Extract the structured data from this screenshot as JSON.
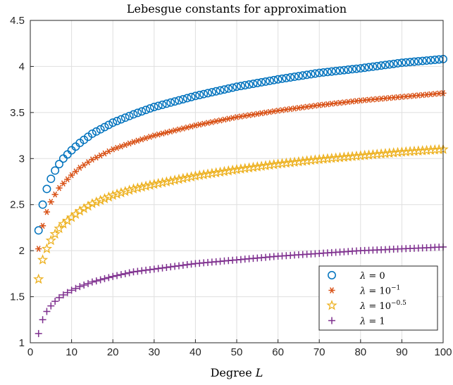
{
  "chart_data": {
    "type": "scatter",
    "title": "Lebesgue constants for approximation",
    "xlabel": "Degree L",
    "ylabel": "",
    "xlim": [
      0,
      100
    ],
    "ylim": [
      1,
      4.5
    ],
    "xticks": [
      0,
      10,
      20,
      30,
      40,
      50,
      60,
      70,
      80,
      90,
      100
    ],
    "yticks": [
      1,
      1.5,
      2,
      2.5,
      3,
      3.5,
      4,
      4.5
    ],
    "xtick_labels": [
      "0",
      "10",
      "20",
      "30",
      "40",
      "50",
      "60",
      "70",
      "80",
      "90",
      "100"
    ],
    "ytick_labels": [
      "1",
      "1.5",
      "2",
      "2.5",
      "3",
      "3.5",
      "4",
      "4.5"
    ],
    "grid": true,
    "legend_position": "bottom-right",
    "x": {
      "start": 2,
      "end": 100,
      "step": 1
    },
    "series": [
      {
        "name": "λ = 0",
        "marker": "circle",
        "color": "#0072BD",
        "anchors": [
          [
            2,
            2.22
          ],
          [
            3,
            2.5
          ],
          [
            4,
            2.67
          ],
          [
            5,
            2.78
          ],
          [
            6,
            2.87
          ],
          [
            7,
            2.94
          ],
          [
            8,
            3.0
          ],
          [
            10,
            3.09
          ],
          [
            12,
            3.17
          ],
          [
            15,
            3.27
          ],
          [
            20,
            3.39
          ],
          [
            25,
            3.48
          ],
          [
            30,
            3.56
          ],
          [
            40,
            3.68
          ],
          [
            50,
            3.78
          ],
          [
            60,
            3.86
          ],
          [
            70,
            3.93
          ],
          [
            80,
            3.98
          ],
          [
            90,
            4.04
          ],
          [
            100,
            4.08
          ]
        ]
      },
      {
        "name": "λ = 10^-1",
        "marker": "asterisk",
        "color": "#D95319",
        "anchors": [
          [
            2,
            2.02
          ],
          [
            3,
            2.27
          ],
          [
            4,
            2.42
          ],
          [
            5,
            2.53
          ],
          [
            6,
            2.61
          ],
          [
            7,
            2.68
          ],
          [
            8,
            2.73
          ],
          [
            10,
            2.82
          ],
          [
            12,
            2.9
          ],
          [
            15,
            2.99
          ],
          [
            20,
            3.1
          ],
          [
            25,
            3.18
          ],
          [
            30,
            3.25
          ],
          [
            40,
            3.36
          ],
          [
            50,
            3.45
          ],
          [
            60,
            3.52
          ],
          [
            70,
            3.58
          ],
          [
            80,
            3.63
          ],
          [
            90,
            3.67
          ],
          [
            100,
            3.71
          ]
        ]
      },
      {
        "name": "λ = 10^-0.5",
        "marker": "pentagram",
        "color": "#EDB120",
        "anchors": [
          [
            2,
            1.69
          ],
          [
            3,
            1.9
          ],
          [
            4,
            2.02
          ],
          [
            5,
            2.11
          ],
          [
            6,
            2.18
          ],
          [
            7,
            2.24
          ],
          [
            8,
            2.29
          ],
          [
            10,
            2.36
          ],
          [
            12,
            2.43
          ],
          [
            15,
            2.51
          ],
          [
            20,
            2.6
          ],
          [
            25,
            2.67
          ],
          [
            30,
            2.72
          ],
          [
            40,
            2.81
          ],
          [
            50,
            2.88
          ],
          [
            60,
            2.94
          ],
          [
            70,
            2.99
          ],
          [
            80,
            3.03
          ],
          [
            90,
            3.07
          ],
          [
            100,
            3.1
          ]
        ]
      },
      {
        "name": "λ = 1",
        "marker": "plus",
        "color": "#7E2F8E",
        "anchors": [
          [
            2,
            1.1
          ],
          [
            3,
            1.25
          ],
          [
            4,
            1.34
          ],
          [
            5,
            1.4
          ],
          [
            6,
            1.45
          ],
          [
            7,
            1.49
          ],
          [
            8,
            1.52
          ],
          [
            10,
            1.57
          ],
          [
            12,
            1.61
          ],
          [
            15,
            1.66
          ],
          [
            20,
            1.72
          ],
          [
            25,
            1.77
          ],
          [
            30,
            1.8
          ],
          [
            40,
            1.86
          ],
          [
            50,
            1.9
          ],
          [
            60,
            1.94
          ],
          [
            70,
            1.97
          ],
          [
            80,
            2.0
          ],
          [
            90,
            2.02
          ],
          [
            100,
            2.04
          ]
        ]
      }
    ]
  }
}
